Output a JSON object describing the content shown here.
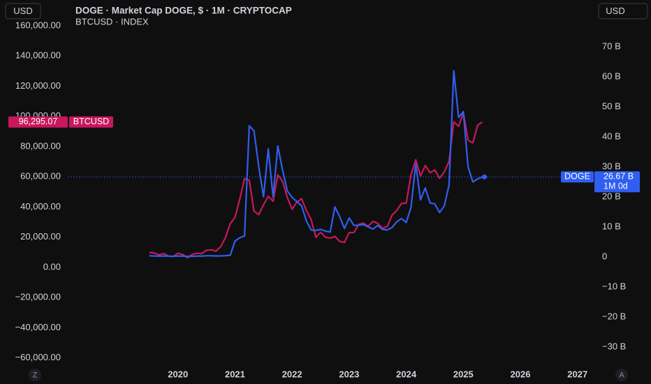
{
  "chart_data": {
    "type": "line",
    "title": "DOGE · Market Cap DOGE, $ · 1M · CRYPTOCAP",
    "subtitle": "BTCUSD · INDEX",
    "left_currency": "USD",
    "right_currency": "USD",
    "left_corner": "Z",
    "right_corner": "A",
    "countdown": "1M 0d",
    "x": [
      2019.5,
      2019.583,
      2019.667,
      2019.75,
      2019.833,
      2019.917,
      2020,
      2020.083,
      2020.167,
      2020.25,
      2020.333,
      2020.417,
      2020.5,
      2020.583,
      2020.667,
      2020.75,
      2020.833,
      2020.917,
      2021,
      2021.083,
      2021.167,
      2021.25,
      2021.333,
      2021.417,
      2021.5,
      2021.583,
      2021.667,
      2021.75,
      2021.833,
      2021.917,
      2022,
      2022.083,
      2022.167,
      2022.25,
      2022.333,
      2022.417,
      2022.5,
      2022.583,
      2022.667,
      2022.75,
      2022.833,
      2022.917,
      2023,
      2023.083,
      2023.167,
      2023.25,
      2023.333,
      2023.417,
      2023.5,
      2023.583,
      2023.667,
      2023.75,
      2023.833,
      2023.917,
      2024,
      2024.083,
      2024.167,
      2024.25,
      2024.333,
      2024.417,
      2024.5,
      2024.583,
      2024.667,
      2024.75,
      2024.833,
      2024.917,
      2025,
      2025.083,
      2025.167,
      2025.25,
      2025.333
    ],
    "series": [
      {
        "name": "DOGE",
        "color": "#2f5ff0",
        "axis": "y2",
        "last_value_label": "26.67 B",
        "values": [
          0.4,
          0.33,
          0.3,
          0.33,
          0.27,
          0.25,
          0.3,
          0.3,
          0.2,
          0.25,
          0.31,
          0.3,
          0.4,
          0.4,
          0.34,
          0.35,
          0.42,
          0.6,
          5.3,
          6.4,
          7.0,
          43.7,
          42,
          30,
          20,
          36,
          20,
          37,
          29,
          22,
          19.8,
          18.5,
          17,
          12,
          9,
          8.8,
          9.2,
          8.6,
          8.3,
          16.7,
          13.5,
          9.5,
          13,
          10.5,
          10.6,
          10.8,
          10,
          9.3,
          10.5,
          9.2,
          9.0,
          9.8,
          11.7,
          12.8,
          11.5,
          16.5,
          31,
          19,
          23,
          18,
          17.7,
          14.8,
          17,
          24,
          62,
          46.5,
          48.4,
          30,
          25,
          26,
          26.67
        ]
      },
      {
        "name": "BTCUSD",
        "color": "#c8185c",
        "axis": "y",
        "last_value_label": "96,295.07",
        "values": [
          10000,
          9600,
          8300,
          9200,
          7550,
          7200,
          9350,
          8600,
          6400,
          8600,
          9450,
          9140,
          11350,
          11650,
          10780,
          13800,
          19700,
          29000,
          33100,
          45200,
          58800,
          57700,
          37300,
          35000,
          41500,
          47100,
          43800,
          61300,
          57000,
          46300,
          38500,
          43200,
          45500,
          37700,
          31800,
          19900,
          23300,
          20000,
          19400,
          20500,
          17200,
          16500,
          23100,
          23100,
          28500,
          29300,
          27200,
          30500,
          29200,
          26000,
          27000,
          34500,
          37700,
          42300,
          42600,
          61200,
          71300,
          60600,
          67500,
          62700,
          64600,
          59000,
          63300,
          70200,
          96400,
          93400,
          102400,
          84300,
          82500,
          94200,
          96295.07
        ]
      }
    ],
    "xlim": [
      2018.07,
      2027.26
    ],
    "xticks": [
      2020,
      2021,
      2022,
      2023,
      2024,
      2025,
      2026,
      2027
    ],
    "ylim": [
      -67050,
      177100
    ],
    "yticks": [
      {
        "value": -60000,
        "label": "−60,000.00"
      },
      {
        "value": -40000,
        "label": "−40,000.00"
      },
      {
        "value": -20000,
        "label": "−20,000.00"
      },
      {
        "value": 0,
        "label": "0.00"
      },
      {
        "value": 20000,
        "label": "20,000.00"
      },
      {
        "value": 40000,
        "label": "40,000.00"
      },
      {
        "value": 60000,
        "label": "60,000.00"
      },
      {
        "value": 80000,
        "label": "80,000.00"
      },
      {
        "value": 100000,
        "label": "100,000.00"
      },
      {
        "value": 120000,
        "label": "120,000.00"
      },
      {
        "value": 140000,
        "label": "140,000.00"
      },
      {
        "value": 160000,
        "label": "160,000.00"
      }
    ],
    "y2lim": [
      -37.2,
      85.6
    ],
    "y2ticks": [
      {
        "value": -30,
        "label": "−30 B"
      },
      {
        "value": -20,
        "label": "−20 B"
      },
      {
        "value": -10,
        "label": "−10 B"
      },
      0,
      {
        "value": 10,
        "label": "10 B"
      },
      {
        "value": 20,
        "label": "20 B"
      },
      {
        "value": 30,
        "label": "30 B"
      },
      {
        "value": 40,
        "label": "40 B"
      },
      {
        "value": 50,
        "label": "50 B"
      },
      {
        "value": 60,
        "label": "60 B"
      },
      {
        "value": 70,
        "label": "70 B"
      }
    ],
    "grid": false
  }
}
